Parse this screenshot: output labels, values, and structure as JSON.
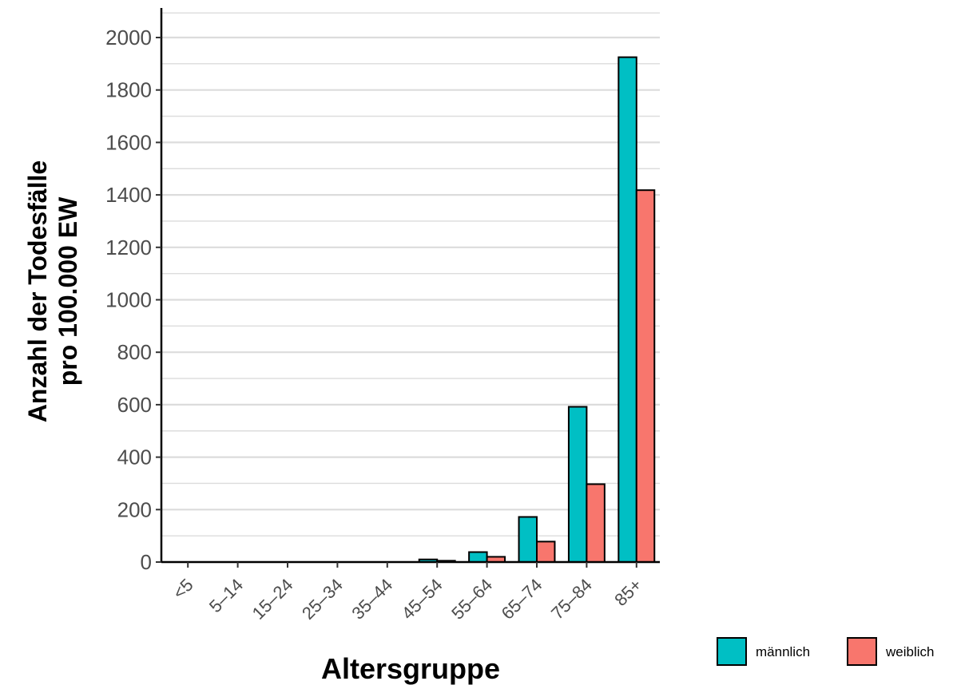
{
  "chart_data": {
    "type": "bar",
    "categories": [
      "<5",
      "5–14",
      "15–24",
      "25–34",
      "35–44",
      "45–54",
      "55–64",
      "65–74",
      "75–84",
      "85+"
    ],
    "series": [
      {
        "name": "männlich",
        "color": "#00BFC4",
        "values": [
          0,
          0,
          0,
          0,
          1,
          10,
          38,
          172,
          592,
          1925
        ]
      },
      {
        "name": "weiblich",
        "color": "#F8766D",
        "values": [
          0,
          0,
          0,
          0,
          1,
          5,
          20,
          78,
          297,
          1418
        ]
      }
    ],
    "xlabel": "Altersgruppe",
    "ylabel_line1": "Anzahl der Todesfälle",
    "ylabel_line2": "pro 100.000 EW",
    "ylim": [
      0,
      2000
    ],
    "yticks": [
      0,
      200,
      400,
      600,
      800,
      1000,
      1200,
      1400,
      1600,
      1800,
      2000
    ],
    "grid": true,
    "legend_position": "bottom-right"
  }
}
